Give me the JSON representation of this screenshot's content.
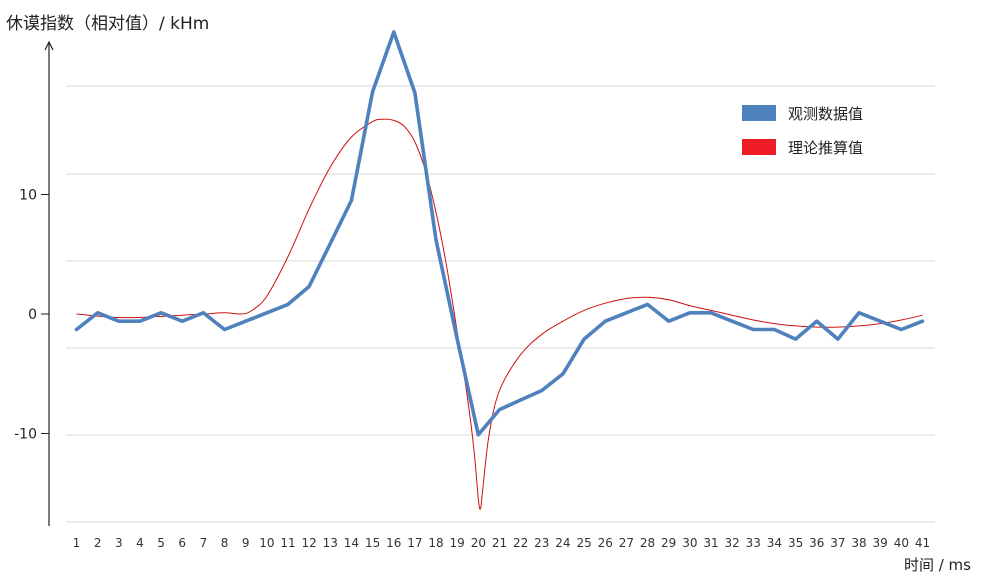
{
  "chart_data": {
    "type": "line",
    "ylabel": "休谟指数（相对值）/ kHm",
    "xlabel": "时间 / ms",
    "categories": [
      "1",
      "2",
      "3",
      "4",
      "5",
      "6",
      "7",
      "8",
      "9",
      "10",
      "11",
      "12",
      "13",
      "14",
      "15",
      "16",
      "17",
      "18",
      "19",
      "20",
      "21",
      "22",
      "23",
      "24",
      "25",
      "26",
      "27",
      "28",
      "29",
      "30",
      "31",
      "32",
      "33",
      "34",
      "35",
      "36",
      "37",
      "38",
      "39",
      "40",
      "41"
    ],
    "yticks": [
      {
        "value": 10,
        "label": "10"
      },
      {
        "value": 0,
        "label": "0"
      },
      {
        "value": -10,
        "label": "-10"
      }
    ],
    "ylim": [
      -17.6,
      23
    ],
    "grid": true,
    "legend_position": "top-right",
    "series": [
      {
        "name": "观测数据值",
        "color": "#4f81bd",
        "style": "thick",
        "x": [
          1,
          2,
          3,
          4,
          5,
          6,
          7,
          8,
          9,
          10,
          11,
          12,
          13,
          14,
          15,
          16,
          17,
          18,
          19,
          20,
          21,
          22,
          23,
          24,
          25,
          26,
          27,
          28,
          29,
          30,
          31,
          32,
          33,
          34,
          35,
          36,
          37,
          38,
          39,
          40,
          41
        ],
        "values": [
          -1.3,
          0.1,
          -0.6,
          -0.6,
          0.1,
          -0.6,
          0.1,
          -1.3,
          -0.6,
          0.1,
          0.8,
          2.3,
          5.9,
          9.5,
          18.6,
          23.6,
          18.5,
          6.2,
          -2.1,
          -10.1,
          -8.0,
          -7.2,
          -6.4,
          -5.0,
          -2.1,
          -0.6,
          0.1,
          0.8,
          -0.6,
          0.1,
          0.1,
          -0.6,
          -1.3,
          -1.3,
          -2.1,
          -0.6,
          -2.1,
          0.1,
          -0.6,
          -1.3,
          -0.6
        ]
      },
      {
        "name": "理论推算值",
        "color": "#cc1111",
        "style": "thin",
        "x": [
          1,
          3,
          5,
          7,
          8,
          8.8,
          9.3,
          10,
          11,
          12,
          13,
          14,
          15,
          15.5,
          16,
          16.5,
          17,
          17.5,
          18,
          18.5,
          19,
          19.5,
          19.8,
          20,
          20.1,
          20.2,
          20.5,
          21,
          22,
          23,
          24,
          25,
          26,
          27,
          28,
          29,
          30,
          31,
          32,
          33,
          34,
          35,
          36,
          37,
          38,
          39,
          40,
          41
        ],
        "values": [
          0,
          -0.3,
          -0.2,
          0,
          0.1,
          0,
          0.3,
          1.5,
          4.8,
          8.8,
          12.3,
          14.8,
          16.1,
          16.3,
          16.2,
          15.7,
          14.4,
          12,
          8.5,
          4,
          -1.5,
          -7.2,
          -11.5,
          -15.5,
          -16.3,
          -14.8,
          -10.2,
          -6.4,
          -3.4,
          -1.7,
          -0.6,
          0.3,
          0.9,
          1.3,
          1.4,
          1.2,
          0.7,
          0.3,
          -0.1,
          -0.5,
          -0.8,
          -1,
          -1.1,
          -1.1,
          -1,
          -0.8,
          -0.5,
          -0.1
        ]
      }
    ]
  }
}
